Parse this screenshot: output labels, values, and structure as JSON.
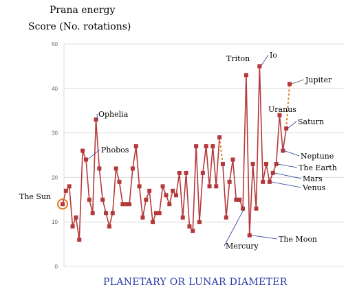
{
  "chart_data": {
    "type": "line",
    "title_line1": "Prana energy",
    "title_line2": "Score (No. rotations)",
    "xlabel": "PLANETARY OR LUNAR DIAMETER",
    "ylabel": "",
    "ylim": [
      0,
      50
    ],
    "yticks": [
      0,
      10,
      20,
      30,
      40,
      50
    ],
    "grid": "horizontal",
    "series": [
      {
        "color": "#b5393b",
        "values": [
          14,
          17,
          18,
          9,
          11,
          6,
          26,
          24,
          15,
          12,
          33,
          22,
          15,
          12,
          9,
          12,
          22,
          19,
          14,
          14,
          14,
          22,
          27,
          18,
          11,
          15,
          17,
          10,
          12,
          12,
          18,
          16,
          14,
          17,
          16,
          21,
          11,
          21,
          9,
          8,
          27,
          10,
          21,
          27,
          18,
          27,
          18,
          29,
          23,
          11,
          19,
          24,
          15,
          15,
          13,
          43,
          7,
          23,
          13,
          45,
          19,
          23,
          19,
          21,
          23,
          34,
          26,
          31,
          41
        ]
      }
    ],
    "dashed_segments": [
      {
        "from_index": 47,
        "to_index": 48,
        "color": "#e07b27"
      },
      {
        "from_index": 67,
        "to_index": 68,
        "color": "#e07b27"
      }
    ],
    "annotations": [
      {
        "text": "The Sun",
        "point_index": 0,
        "highlight_color": "#e8761a"
      },
      {
        "text": "Ophelia",
        "point_index": 10
      },
      {
        "text": "Phobos",
        "point_index": 7
      },
      {
        "text": "Triton",
        "point_index": 55
      },
      {
        "text": "Io",
        "point_index": 59
      },
      {
        "text": "Jupiter",
        "point_index": 68
      },
      {
        "text": "Uranus",
        "point_index": 65
      },
      {
        "text": "Saturn",
        "point_index": 67
      },
      {
        "text": "Neptune",
        "point_index": 66
      },
      {
        "text": "The Earth",
        "point_index": 64
      },
      {
        "text": "Mars",
        "point_index": 63
      },
      {
        "text": "Venus",
        "point_index": 62
      },
      {
        "text": "Mercury",
        "point_index": 54
      },
      {
        "text": "The Moon",
        "point_index": 56
      }
    ]
  }
}
